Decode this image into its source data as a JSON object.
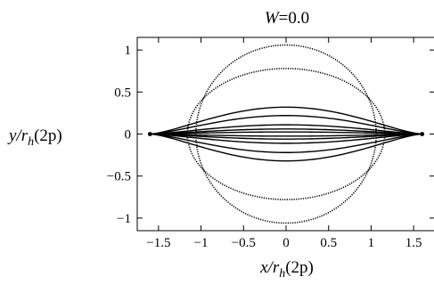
{
  "chart_data": {
    "type": "line",
    "title_var": "W",
    "title_eq": "=0.0",
    "xlabel": {
      "var": "x/r",
      "sub": "h",
      "rest": "(2p)"
    },
    "ylabel": {
      "var": "y/r",
      "sub": "h",
      "rest": "(2p)"
    },
    "xlim": [
      -1.75,
      1.75
    ],
    "ylim": [
      -1.15,
      1.15
    ],
    "xticks": [
      -1.5,
      -1.0,
      -0.5,
      0,
      0.5,
      1.0,
      1.5
    ],
    "xtick_labels": [
      "−1.5",
      "−1",
      "−0.5",
      "0",
      "0.5",
      "1",
      "1.5"
    ],
    "yticks": [
      -1,
      -0.5,
      0,
      0.5,
      1
    ],
    "ytick_labels": [
      "−1",
      "−0.5",
      "0",
      "0.5",
      "1"
    ],
    "grid": false,
    "curves": [
      {
        "shape": "ellipse",
        "a": 1.06,
        "b": 1.06,
        "style": "dotted"
      },
      {
        "shape": "ellipse",
        "a": 1.16,
        "b": 0.78,
        "style": "dotted"
      },
      {
        "shape": "lens",
        "a": 1.6,
        "b": 0.32,
        "style": "solid"
      },
      {
        "shape": "lens",
        "a": 1.6,
        "b": 0.22,
        "style": "solid"
      },
      {
        "shape": "lens",
        "a": 1.6,
        "b": 0.11,
        "style": "solid"
      },
      {
        "shape": "lens",
        "a": 1.6,
        "b": 0.06,
        "style": "solid"
      },
      {
        "shape": "lens",
        "a": 1.6,
        "b": 0.025,
        "style": "solid"
      }
    ]
  }
}
